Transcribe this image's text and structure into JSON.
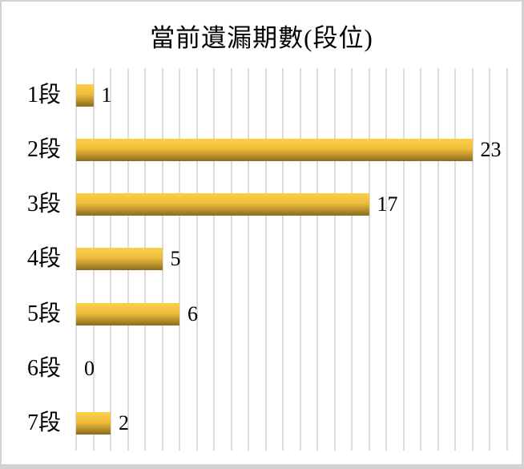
{
  "chart_data": {
    "type": "bar",
    "orientation": "horizontal",
    "title": "當前遺漏期數(段位)",
    "categories": [
      "1段",
      "2段",
      "3段",
      "4段",
      "5段",
      "6段",
      "7段"
    ],
    "values": [
      1,
      23,
      17,
      5,
      6,
      0,
      2
    ],
    "xlabel": "",
    "ylabel": "",
    "xlim": [
      0,
      25
    ],
    "grid_step": 1,
    "grid": true,
    "legend": false,
    "colors": {
      "bar_top": "#fccf49",
      "bar_mid": "#efbd3b",
      "bar_bottom": "#8b6b1e",
      "gridline": "#dcdcdc",
      "text": "#000000",
      "background": "#ffffff",
      "frame": "#d3d3d3"
    }
  }
}
